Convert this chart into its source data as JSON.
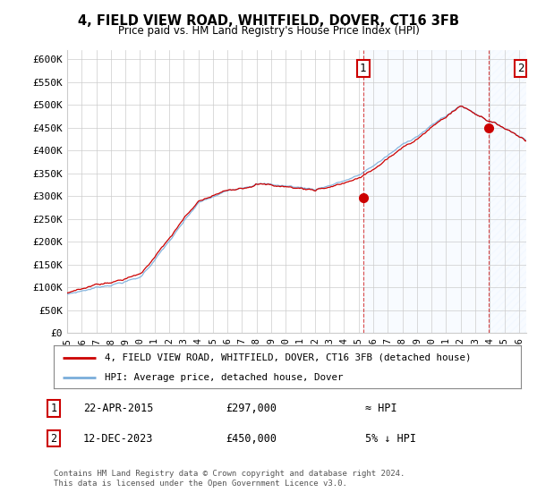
{
  "title": "4, FIELD VIEW ROAD, WHITFIELD, DOVER, CT16 3FB",
  "subtitle": "Price paid vs. HM Land Registry's House Price Index (HPI)",
  "ylabel_ticks": [
    "£0",
    "£50K",
    "£100K",
    "£150K",
    "£200K",
    "£250K",
    "£300K",
    "£350K",
    "£400K",
    "£450K",
    "£500K",
    "£550K",
    "£600K"
  ],
  "ytick_values": [
    0,
    50000,
    100000,
    150000,
    200000,
    250000,
    300000,
    350000,
    400000,
    450000,
    500000,
    550000,
    600000
  ],
  "ylim": [
    0,
    620000
  ],
  "xlim_start": 1995.0,
  "xlim_end": 2026.5,
  "hpi_color": "#7aaedb",
  "price_color": "#cc0000",
  "marker1_date": 2015.31,
  "marker1_value": 297000,
  "marker2_date": 2023.95,
  "marker2_value": 450000,
  "legend_line1": "4, FIELD VIEW ROAD, WHITFIELD, DOVER, CT16 3FB (detached house)",
  "legend_line2": "HPI: Average price, detached house, Dover",
  "note1_label": "1",
  "note1_date": "22-APR-2015",
  "note1_price": "£297,000",
  "note1_rel": "≈ HPI",
  "note2_label": "2",
  "note2_date": "12-DEC-2023",
  "note2_price": "£450,000",
  "note2_rel": "5% ↓ HPI",
  "footer": "Contains HM Land Registry data © Crown copyright and database right 2024.\nThis data is licensed under the Open Government Licence v3.0.",
  "background_color": "#ffffff",
  "grid_color": "#cccccc",
  "shaded_color": "#ddeeff"
}
